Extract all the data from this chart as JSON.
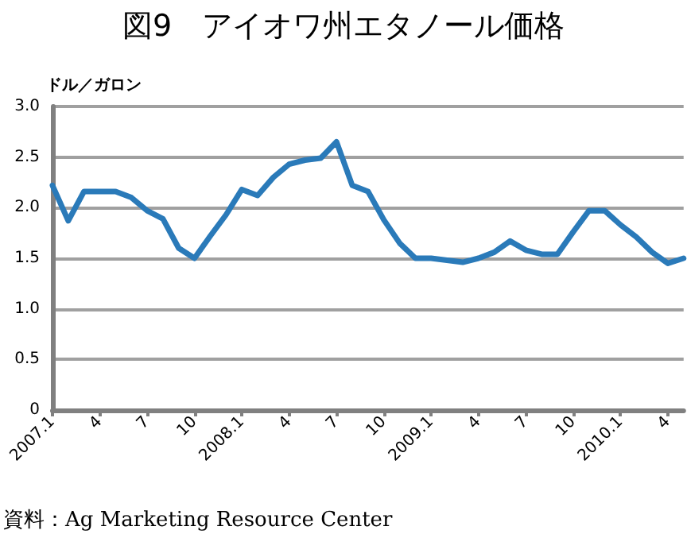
{
  "chart_data": {
    "type": "line",
    "title": "図9　アイオワ州エタノール価格",
    "ylabel": "ドル／ガロン",
    "categories": [
      "2007.1",
      null,
      null,
      "4",
      null,
      null,
      "7",
      null,
      null,
      "10",
      null,
      null,
      "2008.1",
      null,
      null,
      "4",
      null,
      null,
      "7",
      null,
      null,
      "10",
      null,
      null,
      "2009.1",
      null,
      null,
      "4",
      null,
      null,
      "7",
      null,
      null,
      "10",
      null,
      null,
      "2010.1",
      null,
      null,
      "4",
      null
    ],
    "series": [
      {
        "color": "#2a7ab9",
        "values": [
          2.22,
          1.87,
          2.16,
          2.16,
          2.16,
          2.1,
          1.97,
          1.89,
          1.6,
          1.5,
          1.72,
          1.93,
          2.18,
          2.12,
          2.3,
          2.43,
          2.47,
          2.49,
          2.65,
          2.22,
          2.16,
          1.88,
          1.65,
          1.5,
          1.5,
          1.48,
          1.46,
          1.5,
          1.56,
          1.67,
          1.58,
          1.54,
          1.54,
          1.76,
          1.97,
          1.97,
          1.83,
          1.71,
          1.56,
          1.45,
          1.5
        ]
      }
    ],
    "ylim": [
      0,
      3.0
    ],
    "yticks": [
      {
        "value": 0,
        "label": "0"
      },
      {
        "value": 0.5,
        "label": "0.5"
      },
      {
        "value": 1,
        "label": "1.0"
      },
      {
        "value": 1.5,
        "label": "1.5"
      },
      {
        "value": 2,
        "label": "2.0"
      },
      {
        "value": 2.5,
        "label": "2.5"
      },
      {
        "value": 3,
        "label": "3.0"
      }
    ],
    "grid": "y",
    "marker": "none",
    "line_style": "solid",
    "annotations": [
      "資料：Ag Marketing Resource Center"
    ]
  }
}
